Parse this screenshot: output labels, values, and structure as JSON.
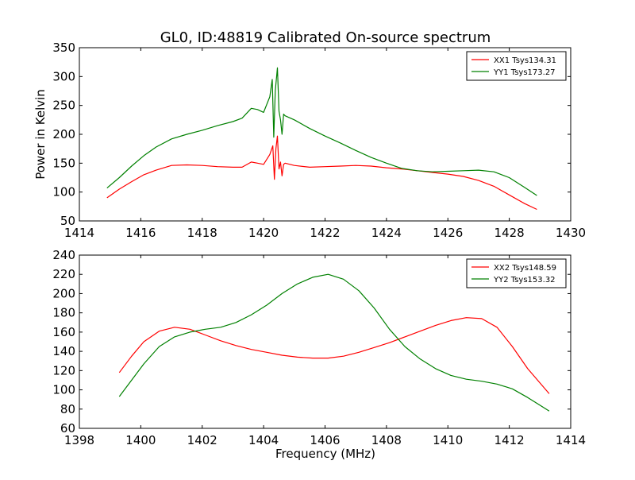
{
  "chart_data": [
    {
      "type": "line",
      "title": "GL0, ID:48819 Calibrated On-source spectrum",
      "xlabel": "",
      "ylabel": "Power in Kelvin",
      "xlim": [
        1414,
        1430
      ],
      "ylim": [
        50,
        350
      ],
      "xticks": [
        1414,
        1416,
        1418,
        1420,
        1422,
        1424,
        1426,
        1428,
        1430
      ],
      "yticks": [
        50,
        100,
        150,
        200,
        250,
        300,
        350
      ],
      "legend_position": "top-right",
      "series": [
        {
          "name": "XX1 Tsys134.31",
          "color": "#ff0000",
          "x": [
            1414.9,
            1415.3,
            1415.7,
            1416.1,
            1416.5,
            1417.0,
            1417.5,
            1418.0,
            1418.5,
            1419.0,
            1419.3,
            1419.6,
            1419.8,
            1420.0,
            1420.2,
            1420.3,
            1420.35,
            1420.4,
            1420.45,
            1420.5,
            1420.55,
            1420.6,
            1420.65,
            1420.7,
            1421.0,
            1421.5,
            1422.0,
            1422.5,
            1423.0,
            1423.5,
            1424.0,
            1424.5,
            1425.0,
            1425.5,
            1426.0,
            1426.5,
            1427.0,
            1427.5,
            1428.0,
            1428.5,
            1428.9
          ],
          "values": [
            90,
            105,
            118,
            130,
            138,
            146,
            147,
            146,
            144,
            143,
            143,
            152,
            150,
            148,
            165,
            180,
            122,
            175,
            197,
            140,
            152,
            128,
            148,
            150,
            146,
            143,
            144,
            145,
            146,
            145,
            142,
            140,
            137,
            134,
            131,
            127,
            120,
            110,
            95,
            80,
            70
          ]
        },
        {
          "name": "YY1 Tsys173.27",
          "color": "#008000",
          "x": [
            1414.9,
            1415.3,
            1415.7,
            1416.1,
            1416.5,
            1417.0,
            1417.5,
            1418.0,
            1418.5,
            1419.0,
            1419.3,
            1419.6,
            1419.8,
            1420.0,
            1420.2,
            1420.28,
            1420.33,
            1420.38,
            1420.45,
            1420.5,
            1420.55,
            1420.6,
            1420.65,
            1420.7,
            1421.0,
            1421.5,
            1422.0,
            1422.5,
            1423.0,
            1423.5,
            1424.0,
            1424.5,
            1425.0,
            1425.5,
            1426.0,
            1426.5,
            1427.0,
            1427.5,
            1428.0,
            1428.5,
            1428.9
          ],
          "values": [
            107,
            125,
            145,
            163,
            178,
            192,
            200,
            207,
            215,
            222,
            228,
            245,
            243,
            238,
            265,
            295,
            195,
            275,
            315,
            240,
            225,
            200,
            235,
            232,
            225,
            210,
            197,
            185,
            172,
            160,
            150,
            141,
            137,
            135,
            136,
            137,
            138,
            135,
            125,
            108,
            94
          ]
        }
      ]
    },
    {
      "type": "line",
      "title": "",
      "xlabel": "Frequency (MHz)",
      "ylabel": "",
      "xlim": [
        1398,
        1414
      ],
      "ylim": [
        60,
        240
      ],
      "xticks": [
        1398,
        1400,
        1402,
        1404,
        1406,
        1408,
        1410,
        1412,
        1414
      ],
      "yticks": [
        60,
        80,
        100,
        120,
        140,
        160,
        180,
        200,
        220,
        240
      ],
      "legend_position": "top-right",
      "series": [
        {
          "name": "XX2 Tsys148.59",
          "color": "#ff0000",
          "x": [
            1399.3,
            1399.7,
            1400.1,
            1400.6,
            1401.1,
            1401.6,
            1402.1,
            1402.6,
            1403.1,
            1403.6,
            1404.1,
            1404.6,
            1405.1,
            1405.6,
            1406.1,
            1406.6,
            1407.1,
            1407.6,
            1408.1,
            1408.6,
            1409.1,
            1409.6,
            1410.1,
            1410.6,
            1411.1,
            1411.6,
            1412.1,
            1412.6,
            1413.3
          ],
          "values": [
            118,
            135,
            150,
            161,
            165,
            163,
            157,
            151,
            146,
            142,
            139,
            136,
            134,
            133,
            133,
            135,
            139,
            144,
            149,
            155,
            161,
            167,
            172,
            175,
            174,
            165,
            145,
            122,
            96
          ]
        },
        {
          "name": "YY2 Tsys153.32",
          "color": "#008000",
          "x": [
            1399.3,
            1399.7,
            1400.1,
            1400.6,
            1401.1,
            1401.6,
            1402.1,
            1402.6,
            1403.1,
            1403.6,
            1404.1,
            1404.6,
            1405.1,
            1405.6,
            1406.1,
            1406.6,
            1407.1,
            1407.6,
            1408.1,
            1408.6,
            1409.1,
            1409.6,
            1410.1,
            1410.6,
            1411.1,
            1411.6,
            1412.1,
            1412.6,
            1413.3
          ],
          "values": [
            93,
            110,
            127,
            145,
            155,
            160,
            163,
            165,
            170,
            178,
            188,
            200,
            210,
            217,
            220,
            215,
            203,
            185,
            163,
            145,
            132,
            122,
            115,
            111,
            109,
            106,
            101,
            92,
            78
          ]
        }
      ]
    }
  ]
}
